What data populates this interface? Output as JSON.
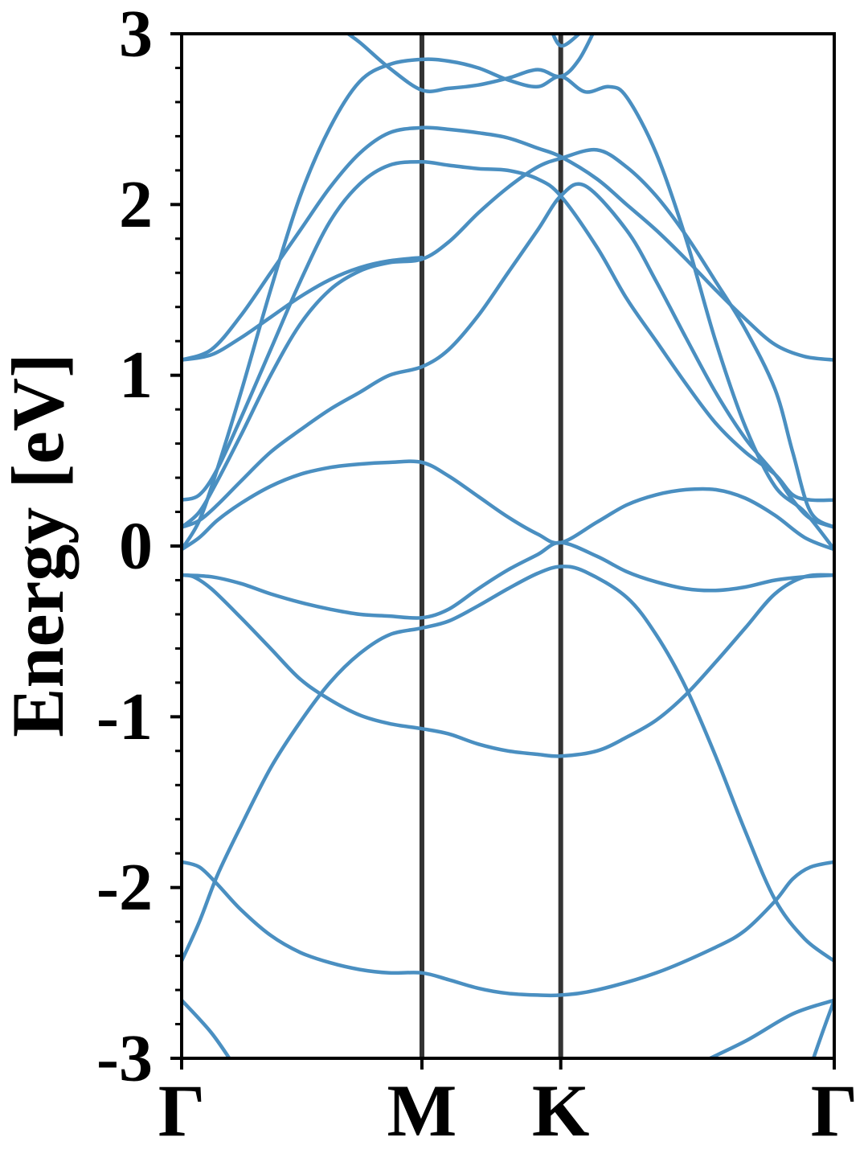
{
  "colors": {
    "band": "#4a8fc1",
    "kpath_line": "#333333",
    "axis": "#000000"
  },
  "chart_data": {
    "type": "line",
    "title": "",
    "xlabel": "",
    "ylabel": "Energy [eV]",
    "ylim": [
      -3,
      3
    ],
    "xlim": [
      0,
      1.1
    ],
    "grid": false,
    "x_ticks": [
      {
        "label": "Γ",
        "x": 0
      },
      {
        "label": "M",
        "x": 0.405
      },
      {
        "label": "K",
        "x": 0.639
      },
      {
        "label": "Γ",
        "x": 1.1
      }
    ],
    "y_ticks": [
      {
        "label": "3",
        "value": 3
      },
      {
        "label": "2",
        "value": 2
      },
      {
        "label": "1",
        "value": 1
      },
      {
        "label": "0",
        "value": 0
      },
      {
        "label": "-1",
        "value": -1
      },
      {
        "label": "-2",
        "value": -2
      },
      {
        "label": "-3",
        "value": -3
      }
    ],
    "y_minor_step": 0.2,
    "vertical_lines_x": [
      0.405,
      0.639
    ],
    "series": [
      {
        "values": [
          [
            0,
            -2.66
          ],
          [
            0.05,
            -2.85
          ],
          [
            0.09,
            -3.05
          ]
        ]
      },
      {
        "values": [
          [
            0.86,
            -3.05
          ],
          [
            0.95,
            -2.9
          ],
          [
            1.03,
            -2.74
          ],
          [
            1.1,
            -2.66
          ]
        ]
      },
      {
        "values": [
          [
            1.06,
            -3.05
          ],
          [
            1.08,
            -2.85
          ],
          [
            1.1,
            -2.66
          ]
        ]
      },
      {
        "values": [
          [
            0,
            -2.43
          ],
          [
            0.03,
            -2.2
          ],
          [
            0.06,
            -1.93
          ],
          [
            0.1,
            -1.64
          ],
          [
            0.15,
            -1.3
          ],
          [
            0.2,
            -1.03
          ],
          [
            0.25,
            -0.8
          ],
          [
            0.3,
            -0.63
          ],
          [
            0.35,
            -0.52
          ],
          [
            0.405,
            -0.48
          ],
          [
            0.45,
            -0.44
          ],
          [
            0.5,
            -0.35
          ],
          [
            0.55,
            -0.25
          ],
          [
            0.6,
            -0.16
          ],
          [
            0.639,
            -0.12
          ],
          [
            0.68,
            -0.15
          ],
          [
            0.75,
            -0.3
          ],
          [
            0.8,
            -0.52
          ],
          [
            0.85,
            -0.83
          ],
          [
            0.9,
            -1.23
          ],
          [
            0.95,
            -1.67
          ],
          [
            1.0,
            -2.07
          ],
          [
            1.05,
            -2.3
          ],
          [
            1.1,
            -2.43
          ]
        ]
      },
      {
        "values": [
          [
            0,
            -1.85
          ],
          [
            0.03,
            -1.88
          ],
          [
            0.06,
            -1.98
          ],
          [
            0.1,
            -2.13
          ],
          [
            0.15,
            -2.28
          ],
          [
            0.2,
            -2.38
          ],
          [
            0.25,
            -2.44
          ],
          [
            0.3,
            -2.48
          ],
          [
            0.35,
            -2.5
          ],
          [
            0.405,
            -2.5
          ],
          [
            0.45,
            -2.54
          ],
          [
            0.5,
            -2.59
          ],
          [
            0.55,
            -2.62
          ],
          [
            0.6,
            -2.63
          ],
          [
            0.639,
            -2.63
          ],
          [
            0.7,
            -2.6
          ],
          [
            0.8,
            -2.5
          ],
          [
            0.9,
            -2.35
          ],
          [
            0.95,
            -2.25
          ],
          [
            1.0,
            -2.08
          ],
          [
            1.03,
            -1.95
          ],
          [
            1.06,
            -1.88
          ],
          [
            1.1,
            -1.85
          ]
        ]
      },
      {
        "values": [
          [
            0,
            -0.17
          ],
          [
            0.02,
            -0.18
          ],
          [
            0.05,
            -0.25
          ],
          [
            0.1,
            -0.42
          ],
          [
            0.15,
            -0.6
          ],
          [
            0.2,
            -0.78
          ],
          [
            0.25,
            -0.9
          ],
          [
            0.3,
            -0.99
          ],
          [
            0.35,
            -1.04
          ],
          [
            0.405,
            -1.07
          ],
          [
            0.45,
            -1.1
          ],
          [
            0.5,
            -1.16
          ],
          [
            0.55,
            -1.2
          ],
          [
            0.6,
            -1.22
          ],
          [
            0.639,
            -1.23
          ],
          [
            0.7,
            -1.2
          ],
          [
            0.75,
            -1.12
          ],
          [
            0.8,
            -1.02
          ],
          [
            0.85,
            -0.87
          ],
          [
            0.9,
            -0.68
          ],
          [
            0.95,
            -0.48
          ],
          [
            1.0,
            -0.28
          ],
          [
            1.05,
            -0.18
          ],
          [
            1.1,
            -0.17
          ]
        ]
      },
      {
        "values": [
          [
            0,
            -0.17
          ],
          [
            0.05,
            -0.18
          ],
          [
            0.1,
            -0.22
          ],
          [
            0.15,
            -0.28
          ],
          [
            0.2,
            -0.33
          ],
          [
            0.25,
            -0.37
          ],
          [
            0.3,
            -0.4
          ],
          [
            0.35,
            -0.41
          ],
          [
            0.405,
            -0.42
          ],
          [
            0.45,
            -0.37
          ],
          [
            0.5,
            -0.25
          ],
          [
            0.55,
            -0.14
          ],
          [
            0.6,
            -0.05
          ],
          [
            0.639,
            0.02
          ],
          [
            0.7,
            -0.06
          ],
          [
            0.75,
            -0.15
          ],
          [
            0.8,
            -0.21
          ],
          [
            0.85,
            -0.25
          ],
          [
            0.9,
            -0.26
          ],
          [
            0.95,
            -0.24
          ],
          [
            1.0,
            -0.2
          ],
          [
            1.05,
            -0.18
          ],
          [
            1.1,
            -0.17
          ]
        ]
      },
      {
        "values": [
          [
            0,
            -0.02
          ],
          [
            0.03,
            0.05
          ],
          [
            0.06,
            0.15
          ],
          [
            0.1,
            0.25
          ],
          [
            0.15,
            0.35
          ],
          [
            0.2,
            0.42
          ],
          [
            0.25,
            0.46
          ],
          [
            0.3,
            0.48
          ],
          [
            0.35,
            0.49
          ],
          [
            0.405,
            0.49
          ],
          [
            0.45,
            0.41
          ],
          [
            0.5,
            0.29
          ],
          [
            0.55,
            0.17
          ],
          [
            0.6,
            0.07
          ],
          [
            0.639,
            0.02
          ],
          [
            0.7,
            0.14
          ],
          [
            0.75,
            0.24
          ],
          [
            0.8,
            0.3
          ],
          [
            0.85,
            0.33
          ],
          [
            0.9,
            0.33
          ],
          [
            0.95,
            0.28
          ],
          [
            1.0,
            0.18
          ],
          [
            1.05,
            0.05
          ],
          [
            1.1,
            -0.02
          ]
        ]
      },
      {
        "values": [
          [
            0,
            0.11
          ],
          [
            0.03,
            0.15
          ],
          [
            0.06,
            0.24
          ],
          [
            0.1,
            0.38
          ],
          [
            0.15,
            0.55
          ],
          [
            0.2,
            0.68
          ],
          [
            0.25,
            0.8
          ],
          [
            0.3,
            0.9
          ],
          [
            0.35,
            1.0
          ],
          [
            0.405,
            1.05
          ],
          [
            0.45,
            1.15
          ],
          [
            0.5,
            1.35
          ],
          [
            0.55,
            1.6
          ],
          [
            0.6,
            1.85
          ],
          [
            0.639,
            2.05
          ],
          [
            0.68,
            2.11
          ],
          [
            0.75,
            1.85
          ],
          [
            0.8,
            1.55
          ],
          [
            0.85,
            1.22
          ],
          [
            0.9,
            0.9
          ],
          [
            0.95,
            0.63
          ],
          [
            1.0,
            0.42
          ],
          [
            1.03,
            0.27
          ],
          [
            1.06,
            0.16
          ],
          [
            1.1,
            0.11
          ]
        ]
      },
      {
        "values": [
          [
            0,
            0.11
          ],
          [
            0.03,
            0.2
          ],
          [
            0.06,
            0.38
          ],
          [
            0.1,
            0.65
          ],
          [
            0.15,
            1.0
          ],
          [
            0.2,
            1.3
          ],
          [
            0.25,
            1.5
          ],
          [
            0.3,
            1.61
          ],
          [
            0.35,
            1.66
          ],
          [
            0.405,
            1.68
          ],
          [
            0.45,
            1.78
          ],
          [
            0.5,
            1.95
          ],
          [
            0.55,
            2.1
          ],
          [
            0.6,
            2.22
          ],
          [
            0.639,
            2.27
          ],
          [
            0.7,
            2.32
          ],
          [
            0.75,
            2.22
          ],
          [
            0.8,
            2.05
          ],
          [
            0.85,
            1.82
          ],
          [
            0.9,
            1.55
          ],
          [
            0.95,
            1.27
          ],
          [
            1.0,
            0.92
          ],
          [
            1.03,
            0.55
          ],
          [
            1.06,
            0.2
          ],
          [
            1.1,
            0.11
          ]
        ]
      },
      {
        "values": [
          [
            0,
            0.27
          ],
          [
            0.03,
            0.3
          ],
          [
            0.06,
            0.45
          ],
          [
            0.1,
            0.75
          ],
          [
            0.15,
            1.15
          ],
          [
            0.2,
            1.55
          ],
          [
            0.25,
            1.9
          ],
          [
            0.3,
            2.12
          ],
          [
            0.35,
            2.23
          ],
          [
            0.405,
            2.25
          ],
          [
            0.45,
            2.23
          ],
          [
            0.5,
            2.21
          ],
          [
            0.55,
            2.2
          ],
          [
            0.6,
            2.15
          ],
          [
            0.639,
            2.05
          ],
          [
            0.7,
            1.75
          ],
          [
            0.75,
            1.45
          ],
          [
            0.8,
            1.2
          ],
          [
            0.85,
            0.95
          ],
          [
            0.9,
            0.72
          ],
          [
            0.95,
            0.55
          ],
          [
            1.0,
            0.42
          ],
          [
            1.03,
            0.3
          ],
          [
            1.06,
            0.27
          ],
          [
            1.1,
            0.27
          ]
        ]
      },
      {
        "values": [
          [
            0,
            1.09
          ],
          [
            0.05,
            1.12
          ],
          [
            0.1,
            1.22
          ],
          [
            0.15,
            1.34
          ],
          [
            0.2,
            1.46
          ],
          [
            0.25,
            1.56
          ],
          [
            0.3,
            1.63
          ],
          [
            0.35,
            1.67
          ],
          [
            0.405,
            1.69
          ]
        ]
      },
      {
        "values": [
          [
            0,
            1.09
          ],
          [
            0.05,
            1.15
          ],
          [
            0.1,
            1.35
          ],
          [
            0.15,
            1.6
          ],
          [
            0.2,
            1.85
          ],
          [
            0.25,
            2.1
          ],
          [
            0.3,
            2.3
          ],
          [
            0.35,
            2.42
          ],
          [
            0.405,
            2.45
          ],
          [
            0.45,
            2.44
          ],
          [
            0.5,
            2.42
          ],
          [
            0.55,
            2.39
          ],
          [
            0.6,
            2.33
          ],
          [
            0.639,
            2.28
          ],
          [
            0.7,
            2.15
          ],
          [
            0.75,
            2.0
          ],
          [
            0.8,
            1.85
          ],
          [
            0.85,
            1.68
          ],
          [
            0.9,
            1.5
          ],
          [
            0.95,
            1.33
          ],
          [
            1.0,
            1.18
          ],
          [
            1.05,
            1.11
          ],
          [
            1.1,
            1.09
          ]
        ]
      },
      {
        "values": [
          [
            0,
            -0.02
          ],
          [
            0.03,
            0.15
          ],
          [
            0.06,
            0.45
          ],
          [
            0.1,
            0.9
          ],
          [
            0.15,
            1.5
          ],
          [
            0.2,
            2.05
          ],
          [
            0.25,
            2.45
          ],
          [
            0.3,
            2.72
          ],
          [
            0.35,
            2.82
          ],
          [
            0.405,
            2.85
          ],
          [
            0.45,
            2.84
          ],
          [
            0.5,
            2.8
          ],
          [
            0.55,
            2.73
          ],
          [
            0.6,
            2.69
          ],
          [
            0.639,
            2.75
          ],
          [
            0.68,
            2.66
          ],
          [
            0.72,
            2.69
          ],
          [
            0.75,
            2.63
          ],
          [
            0.8,
            2.3
          ],
          [
            0.85,
            1.8
          ],
          [
            0.9,
            1.2
          ],
          [
            0.95,
            0.7
          ],
          [
            1.0,
            0.35
          ],
          [
            1.05,
            0.2
          ],
          [
            1.1,
            -0.02
          ]
        ]
      },
      {
        "values": [
          [
            0.26,
            3.05
          ],
          [
            0.3,
            2.95
          ],
          [
            0.35,
            2.8
          ],
          [
            0.405,
            2.67
          ],
          [
            0.45,
            2.68
          ],
          [
            0.5,
            2.7
          ],
          [
            0.55,
            2.74
          ],
          [
            0.6,
            2.79
          ],
          [
            0.639,
            2.75
          ],
          [
            0.67,
            2.85
          ],
          [
            0.7,
            3.05
          ]
        ]
      },
      {
        "values": [
          [
            0.62,
            3.05
          ],
          [
            0.639,
            2.93
          ],
          [
            0.67,
            3.0
          ],
          [
            0.68,
            3.05
          ]
        ]
      }
    ]
  }
}
